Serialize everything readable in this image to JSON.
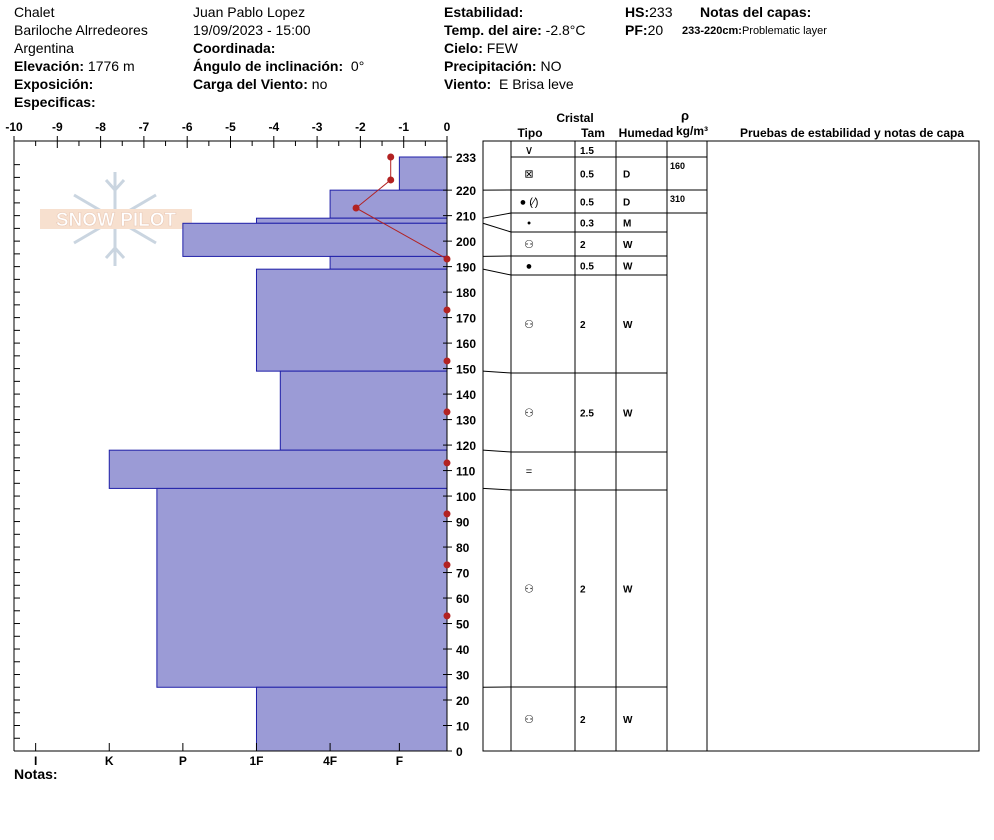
{
  "header": {
    "col1": {
      "location": "Chalet",
      "area": "Bariloche Alrredeores",
      "country": "Argentina",
      "elevation_label": "Elevación:",
      "elevation_value": "1776 m",
      "exposure_label": "Exposición:",
      "specifics_label": "Especificas:"
    },
    "col2": {
      "observer": "Juan Pablo  Lopez",
      "datetime": "19/09/2023 - 15:00",
      "coord_label": "Coordinada:",
      "slope_label": "Ángulo de inclinación:",
      "slope_value": "0°",
      "wind_load_label": "Carga del Viento:",
      "wind_load_value": "no"
    },
    "col3": {
      "stability_label": "Estabilidad:",
      "air_temp_label": "Temp. del aire:",
      "air_temp_value": "-2.8°C",
      "sky_label": "Cielo:",
      "sky_value": "FEW",
      "precip_label": "Precipitación:",
      "precip_value": "NO",
      "wind_label": "Viento:",
      "wind_value": "E Brisa leve"
    },
    "col4": {
      "hs_label": "HS:",
      "hs_value": "233",
      "pf_label": "PF:",
      "pf_value": "20",
      "notes_title": "Notas del capas:",
      "layer_note_range": "233-220cm:",
      "layer_note_text": "Problematic layer"
    }
  },
  "footer": {
    "notes_label": "Notas:"
  },
  "watermark": {
    "text": "SNOW PILOT"
  },
  "table": {
    "crystal_label": "Cristal",
    "type_label": "Tipo",
    "size_label": "Tam",
    "moisture_label": "Humedad",
    "density_symbol": "ρ",
    "density_unit": "kg/m³",
    "tests_label": "Pruebas de estabilidad y notas de capa"
  },
  "chart_data": {
    "type": "bar",
    "temp_axis": {
      "min": -10,
      "max": 0,
      "ticks": [
        -10,
        -9,
        -8,
        -7,
        -6,
        -5,
        -4,
        -3,
        -2,
        -1,
        0
      ]
    },
    "height_axis": {
      "min": 0,
      "max": 233,
      "ticks": [
        0,
        10,
        20,
        30,
        40,
        50,
        60,
        70,
        80,
        90,
        100,
        110,
        120,
        130,
        140,
        150,
        160,
        170,
        180,
        190,
        200,
        210,
        220,
        233
      ]
    },
    "hardness_labels": [
      {
        "label": "I",
        "temp": -9.5
      },
      {
        "label": "K",
        "temp": -7.8
      },
      {
        "label": "P",
        "temp": -6.1
      },
      {
        "label": "1F",
        "temp": -4.4
      },
      {
        "label": "4F",
        "temp": -2.7
      },
      {
        "label": "F",
        "temp": -1.1
      }
    ],
    "hardness_layers": [
      {
        "top": 233,
        "bottom": 220,
        "value": -1.1
      },
      {
        "top": 220,
        "bottom": 209,
        "value": -2.7
      },
      {
        "top": 209,
        "bottom": 207,
        "value": -4.4
      },
      {
        "top": 207,
        "bottom": 194,
        "value": -6.1
      },
      {
        "top": 194,
        "bottom": 189,
        "value": -2.7
      },
      {
        "top": 189,
        "bottom": 149,
        "value": -4.4
      },
      {
        "top": 149,
        "bottom": 118,
        "value": -3.85
      },
      {
        "top": 118,
        "bottom": 103,
        "value": -7.8
      },
      {
        "top": 103,
        "bottom": 25,
        "value": -6.7
      },
      {
        "top": 25,
        "bottom": 0,
        "value": -4.4
      }
    ],
    "temperature_profile": [
      {
        "height": 233,
        "temp": -1.3
      },
      {
        "height": 224,
        "temp": -1.3
      },
      {
        "height": 213,
        "temp": -2.1
      },
      {
        "height": 193,
        "temp": 0
      },
      {
        "height": 173,
        "temp": 0
      },
      {
        "height": 153,
        "temp": 0
      },
      {
        "height": 133,
        "temp": 0
      },
      {
        "height": 113,
        "temp": 0
      },
      {
        "height": 93,
        "temp": 0
      },
      {
        "height": 73,
        "temp": 0
      },
      {
        "height": 53,
        "temp": 0
      }
    ],
    "layers": [
      {
        "top": 233,
        "bottom": 220,
        "type": "⊠",
        "size": "0.5",
        "moisture": "D"
      },
      {
        "top": 220,
        "bottom": 209,
        "type": "● (⁄)",
        "size": "0.5",
        "moisture": "D"
      },
      {
        "top": 209,
        "bottom": 207,
        "type": "•",
        "size": "0.3",
        "moisture": "M"
      },
      {
        "top": 207,
        "bottom": 194,
        "type": "⚇",
        "size": "2",
        "moisture": "W"
      },
      {
        "top": 194,
        "bottom": 189,
        "type": "●",
        "size": "0.5",
        "moisture": "W"
      },
      {
        "top": 189,
        "bottom": 149,
        "type": "⚇",
        "size": "2",
        "moisture": "W"
      },
      {
        "top": 149,
        "bottom": 118,
        "type": "⚇",
        "size": "2.5",
        "moisture": "W"
      },
      {
        "top": 118,
        "bottom": 103,
        "type": "=",
        "size": "",
        "moisture": ""
      },
      {
        "top": 103,
        "bottom": 25,
        "type": "⚇",
        "size": "2",
        "moisture": "W"
      },
      {
        "top": 25,
        "bottom": 0,
        "type": "⚇",
        "size": "2",
        "moisture": "W"
      }
    ],
    "surface_row": {
      "type": "∨",
      "size": "1.5"
    },
    "densities": [
      {
        "value": "160",
        "top": 233,
        "bottom": 220
      },
      {
        "value": "310",
        "top": 220,
        "bottom": 209
      }
    ]
  }
}
